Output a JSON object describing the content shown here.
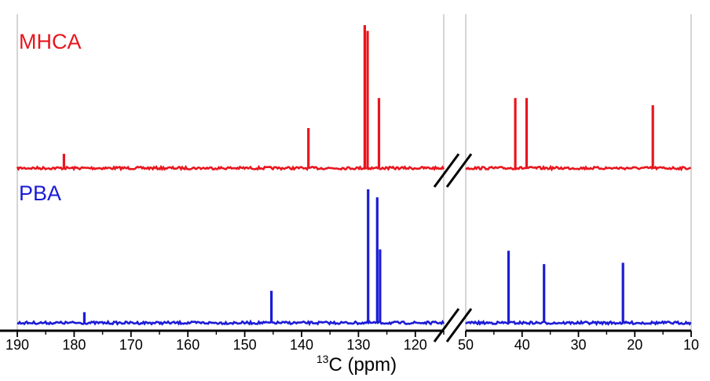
{
  "chart_data": {
    "type": "line",
    "title": "",
    "xlabel_prefix": "13",
    "xlabel_main": "C (ppm)",
    "axis_break": true,
    "x_segments": [
      {
        "xlim": [
          190,
          115
        ],
        "ticks": [
          190,
          180,
          170,
          160,
          150,
          140,
          130,
          120
        ]
      },
      {
        "xlim": [
          50,
          10
        ],
        "ticks": [
          50,
          40,
          30,
          20,
          10
        ]
      }
    ],
    "grid": false,
    "series": [
      {
        "name": "MHCA",
        "color": "#e8161e",
        "peaks": [
          {
            "ppm": 181.8,
            "height": 0.1
          },
          {
            "ppm": 138.8,
            "height": 0.28
          },
          {
            "ppm": 128.9,
            "height": 1.0
          },
          {
            "ppm": 128.4,
            "height": 0.96
          },
          {
            "ppm": 126.4,
            "height": 0.49
          },
          {
            "ppm": 41.2,
            "height": 0.49
          },
          {
            "ppm": 39.2,
            "height": 0.49
          },
          {
            "ppm": 16.8,
            "height": 0.44
          }
        ]
      },
      {
        "name": "PBA",
        "color": "#1c1cd6",
        "peaks": [
          {
            "ppm": 178.2,
            "height": 0.08
          },
          {
            "ppm": 145.3,
            "height": 0.24
          },
          {
            "ppm": 128.3,
            "height": 1.0
          },
          {
            "ppm": 126.7,
            "height": 0.94
          },
          {
            "ppm": 126.2,
            "height": 0.55
          },
          {
            "ppm": 42.4,
            "height": 0.54
          },
          {
            "ppm": 36.1,
            "height": 0.44
          },
          {
            "ppm": 22.1,
            "height": 0.45
          }
        ]
      }
    ]
  }
}
